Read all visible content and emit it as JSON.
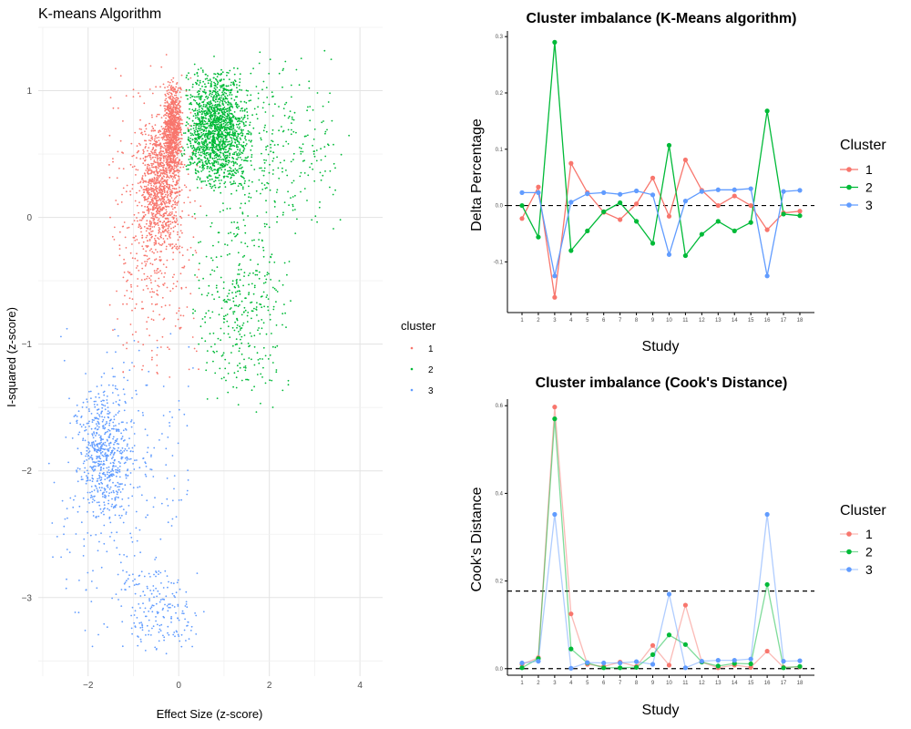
{
  "chart_data": [
    {
      "id": "kmeans-scatter",
      "type": "scatter",
      "title": "K-means Algorithm",
      "xlabel": "Effect Size (z-score)",
      "ylabel": "I-squared (z-score)",
      "xlim": [
        -3.1,
        4.5
      ],
      "ylim": [
        -3.62,
        1.5
      ],
      "xticks": [
        -2,
        0,
        2,
        4
      ],
      "yticks": [
        -3,
        -2,
        -1,
        0,
        1
      ],
      "grid": true,
      "legend": {
        "title": "cluster",
        "position": "right"
      },
      "series": [
        {
          "name": "1",
          "color": "#F8766D",
          "n": 2200,
          "regions": [
            {
              "x": [
                -0.35,
                0.1
              ],
              "y": [
                0.3,
                1.1
              ],
              "weight": 3
            },
            {
              "x": [
                -0.9,
                0.1
              ],
              "y": [
                -0.3,
                0.8
              ],
              "weight": 3
            },
            {
              "x": [
                -1.6,
                0.55
              ],
              "y": [
                -1.35,
                1.3
              ],
              "weight": 2
            }
          ]
        },
        {
          "name": "2",
          "color": "#00BA38",
          "n": 2200,
          "regions": [
            {
              "x": [
                0.05,
                1.6
              ],
              "y": [
                0.2,
                1.2
              ],
              "weight": 4
            },
            {
              "x": [
                0.1,
                3.8
              ],
              "y": [
                -0.2,
                1.35
              ],
              "weight": 1
            },
            {
              "x": [
                0.2,
                2.6
              ],
              "y": [
                -1.6,
                0.2
              ],
              "weight": 1
            }
          ]
        },
        {
          "name": "3",
          "color": "#619CFF",
          "n": 1000,
          "regions": [
            {
              "x": [
                -2.3,
                -1.0
              ],
              "y": [
                -2.4,
                -1.3
              ],
              "weight": 3
            },
            {
              "x": [
                -2.9,
                0.4
              ],
              "y": [
                -3.5,
                -0.8
              ],
              "weight": 2
            },
            {
              "x": [
                -1.4,
                0.6
              ],
              "y": [
                -3.5,
                -2.7
              ],
              "weight": 1
            }
          ]
        }
      ]
    },
    {
      "id": "delta-chart",
      "type": "line",
      "title": "Cluster imbalance (K-Means algorithm)",
      "xlabel": "Study",
      "ylabel": "Delta Percentage",
      "x": [
        1,
        2,
        3,
        4,
        5,
        6,
        7,
        8,
        9,
        10,
        11,
        12,
        13,
        14,
        15,
        16,
        17,
        18
      ],
      "ylim": [
        -0.19,
        0.31
      ],
      "yticks": [
        -0.1,
        0.0,
        0.1,
        0.2,
        0.3
      ],
      "ytick_labels": [
        "-0.1",
        "0.0",
        "0.1",
        "0.2",
        "0.3"
      ],
      "hlines": [
        0
      ],
      "legend": {
        "title": "Cluster",
        "position": "right"
      },
      "series": [
        {
          "name": "1",
          "color": "#F8766D",
          "values": [
            -0.023,
            0.033,
            -0.163,
            0.075,
            0.023,
            -0.012,
            -0.025,
            0.003,
            0.049,
            -0.019,
            0.081,
            0.027,
            0.0,
            0.017,
            0.0,
            -0.043,
            -0.013,
            -0.01
          ]
        },
        {
          "name": "2",
          "color": "#00BA38",
          "values": [
            0.0,
            -0.056,
            0.29,
            -0.08,
            -0.045,
            -0.011,
            0.005,
            -0.028,
            -0.067,
            0.107,
            -0.089,
            -0.051,
            -0.028,
            -0.045,
            -0.03,
            0.168,
            -0.015,
            -0.018
          ]
        },
        {
          "name": "3",
          "color": "#619CFF",
          "values": [
            0.023,
            0.023,
            -0.125,
            0.006,
            0.021,
            0.023,
            0.02,
            0.026,
            0.019,
            -0.087,
            0.008,
            0.025,
            0.028,
            0.028,
            0.03,
            -0.125,
            0.025,
            0.027
          ]
        }
      ]
    },
    {
      "id": "cooks-chart",
      "type": "line",
      "title": "Cluster imbalance (Cook's Distance)",
      "xlabel": "Study",
      "ylabel": "Cook's Distance",
      "x": [
        1,
        2,
        3,
        4,
        5,
        6,
        7,
        8,
        9,
        10,
        11,
        12,
        13,
        14,
        15,
        16,
        17,
        18
      ],
      "ylim": [
        -0.015,
        0.615
      ],
      "yticks": [
        0.0,
        0.2,
        0.4,
        0.6
      ],
      "ytick_labels": [
        "0.0",
        "0.2",
        "0.4",
        "0.6"
      ],
      "hlines": [
        0,
        0.177
      ],
      "legend": {
        "title": "Cluster",
        "position": "right"
      },
      "series": [
        {
          "name": "1",
          "color": "#F8766D",
          "values": [
            0.01,
            0.025,
            0.597,
            0.125,
            0.01,
            0.005,
            0.015,
            0.005,
            0.053,
            0.008,
            0.145,
            0.015,
            0.002,
            0.008,
            0.003,
            0.04,
            0.003,
            0.004
          ]
        },
        {
          "name": "2",
          "color": "#00BA38",
          "values": [
            0.002,
            0.023,
            0.57,
            0.045,
            0.013,
            0.002,
            0.002,
            0.003,
            0.032,
            0.077,
            0.055,
            0.015,
            0.006,
            0.012,
            0.011,
            0.192,
            0.002,
            0.005
          ]
        },
        {
          "name": "3",
          "color": "#619CFF",
          "values": [
            0.013,
            0.017,
            0.352,
            0.001,
            0.014,
            0.013,
            0.013,
            0.016,
            0.01,
            0.17,
            0.002,
            0.017,
            0.019,
            0.019,
            0.022,
            0.352,
            0.017,
            0.018
          ]
        }
      ]
    }
  ]
}
